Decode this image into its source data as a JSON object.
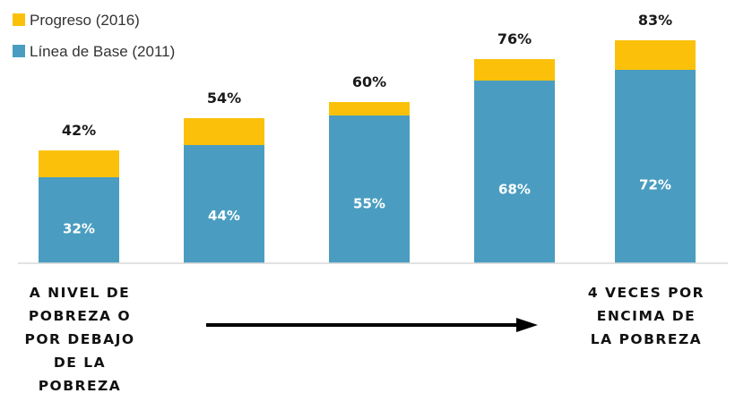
{
  "chart_data": {
    "type": "bar",
    "stacked": true,
    "categories": [
      "",
      "",
      "",
      "",
      ""
    ],
    "series": [
      {
        "name": "Línea de Base (2011)",
        "color": "#4a9dc0",
        "values": [
          32,
          44,
          55,
          68,
          72
        ],
        "labels": [
          "32%",
          "44%",
          "55%",
          "68%",
          "72%"
        ]
      },
      {
        "name": "Progreso (2016)",
        "color": "#fbc10a",
        "values": [
          10,
          10,
          5,
          8,
          11
        ]
      }
    ],
    "totals": [
      42,
      54,
      60,
      76,
      83
    ],
    "total_labels": [
      "42%",
      "54%",
      "60%",
      "76%",
      "83%"
    ],
    "ylim": [
      0,
      100
    ],
    "grid": false,
    "legend_position": "top-left",
    "title": "",
    "xlabel": "",
    "ylabel": ""
  },
  "legend": {
    "items": [
      {
        "label": "Progreso (2016)",
        "color": "#fbc10a"
      },
      {
        "label": "Línea de Base (2011)",
        "color": "#4a9dc0"
      }
    ]
  },
  "captions": {
    "left": [
      "A NIVEL DE",
      "POBREZA O",
      "POR DEBAJO",
      "DE LA",
      "POBREZA"
    ],
    "right": [
      "4 VECES POR",
      "ENCIMA DE",
      "LA POBREZA"
    ]
  },
  "arrow": {
    "color": "#000000"
  },
  "axis": {
    "color": "#d9d9d9"
  }
}
